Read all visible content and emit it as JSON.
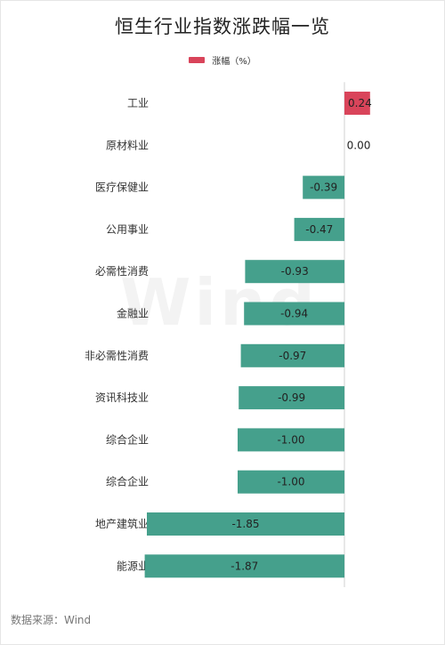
{
  "title": "恒生行业指数涨跌幅一览",
  "source": "数据来源：Wind",
  "watermark": "Wind",
  "colors": {
    "positive": "#d9445a",
    "negative": "#45a08c"
  },
  "chart_data": {
    "type": "bar",
    "orientation": "horizontal",
    "title": "恒生行业指数涨跌幅一览",
    "legend_position": "top-center",
    "grid": false,
    "categories": [
      "工业",
      "原材料业",
      "医疗保健业",
      "公用事业",
      "必需性消费",
      "金融业",
      "非必需性消费",
      "资讯科技业",
      "综合企业",
      "综合企业",
      "地产建筑业",
      "能源业"
    ],
    "series": [
      {
        "name": "涨幅（%）",
        "values": [
          0.24,
          0.0,
          -0.39,
          -0.47,
          -0.93,
          -0.94,
          -0.97,
          -0.99,
          -1.0,
          -1.0,
          -1.85,
          -1.87
        ],
        "labels": [
          "0.24",
          "0.00",
          "-0.39",
          "-0.47",
          "-0.93",
          "-0.94",
          "-0.97",
          "-0.99",
          "-1.00",
          "-1.00",
          "-1.85",
          "-1.87"
        ]
      }
    ]
  }
}
